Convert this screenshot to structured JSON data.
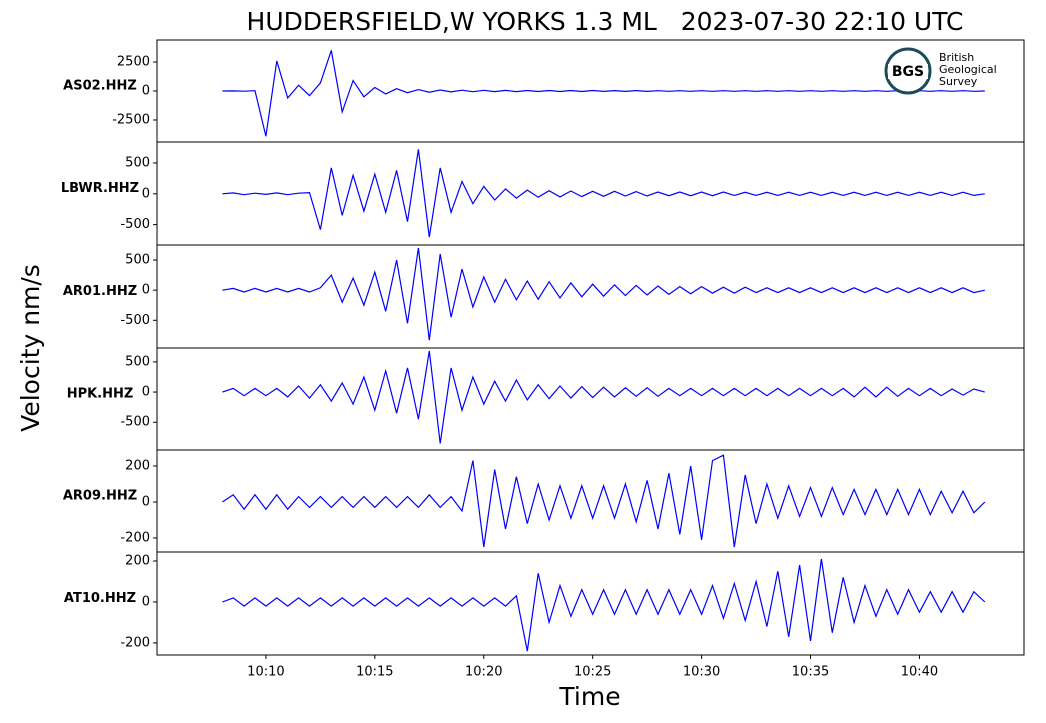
{
  "chart_data": {
    "type": "line",
    "title": "HUDDERSFIELD,W YORKS 1.3 ML   2023-07-30 22:10 UTC",
    "xlabel": "Time",
    "ylabel": "Velocity nm/s",
    "color": "#0000ff",
    "logo": {
      "initials": "BGS",
      "lines": [
        "British",
        "Geological",
        "Survey"
      ]
    },
    "xlim": [
      605,
      644.8
    ],
    "xticks": [
      {
        "value": 610,
        "label": "10:10"
      },
      {
        "value": 615,
        "label": "10:15"
      },
      {
        "value": 620,
        "label": "10:20"
      },
      {
        "value": 625,
        "label": "10:25"
      },
      {
        "value": 630,
        "label": "10:30"
      },
      {
        "value": 635,
        "label": "10:35"
      },
      {
        "value": 640,
        "label": "10:40"
      }
    ],
    "x": [
      608,
      608.5,
      609,
      609.5,
      610,
      610.5,
      611,
      611.5,
      612,
      612.5,
      613,
      613.5,
      614,
      614.5,
      615,
      615.5,
      616,
      616.5,
      617,
      617.5,
      618,
      618.5,
      619,
      619.5,
      620,
      620.5,
      621,
      621.5,
      622,
      622.5,
      623,
      623.5,
      624,
      624.5,
      625,
      625.5,
      626,
      626.5,
      627,
      627.5,
      628,
      628.5,
      629,
      629.5,
      630,
      630.5,
      631,
      631.5,
      632,
      632.5,
      633,
      633.5,
      634,
      634.5,
      635,
      635.5,
      636,
      636.5,
      637,
      637.5,
      638,
      638.5,
      639,
      639.5,
      640,
      640.5,
      641,
      641.5,
      642,
      642.5,
      643
    ],
    "series": [
      {
        "name": "AS02.HHZ",
        "ylim": [
          -4400,
          4400
        ],
        "yticks": [
          -2500,
          0,
          2500
        ],
        "values": [
          0,
          10,
          -20,
          30,
          -3900,
          2600,
          -600,
          500,
          -400,
          700,
          3500,
          -1800,
          900,
          -500,
          300,
          -250,
          200,
          -150,
          120,
          -100,
          90,
          -80,
          70,
          -60,
          60,
          -50,
          50,
          -50,
          45,
          -45,
          40,
          -40,
          40,
          -40,
          40,
          -35,
          35,
          -35,
          35,
          -35,
          30,
          -30,
          30,
          -30,
          30,
          -30,
          30,
          -30,
          30,
          -30,
          30,
          -30,
          30,
          -30,
          30,
          -30,
          30,
          -30,
          30,
          -30,
          30,
          -30,
          30,
          -30,
          30,
          -30,
          30,
          -30,
          30,
          -30,
          0
        ]
      },
      {
        "name": "LBWR.HHZ",
        "ylim": [
          -830,
          840
        ],
        "yticks": [
          -500,
          0,
          500
        ],
        "values": [
          0,
          15,
          -15,
          10,
          -10,
          15,
          -15,
          10,
          20,
          -580,
          420,
          -350,
          300,
          -280,
          320,
          -300,
          380,
          -450,
          720,
          -700,
          420,
          -300,
          200,
          -160,
          120,
          -100,
          80,
          -70,
          60,
          -55,
          50,
          -50,
          45,
          -45,
          40,
          -40,
          40,
          -35,
          35,
          -35,
          30,
          -30,
          30,
          -30,
          30,
          -30,
          30,
          -25,
          25,
          -25,
          25,
          -25,
          25,
          -25,
          25,
          -25,
          25,
          -25,
          25,
          -25,
          25,
          -25,
          25,
          -25,
          25,
          -25,
          25,
          -25,
          25,
          -25,
          0
        ]
      },
      {
        "name": "AR01.HHZ",
        "ylim": [
          -960,
          750
        ],
        "yticks": [
          -500,
          0,
          500
        ],
        "values": [
          0,
          30,
          -30,
          30,
          -30,
          30,
          -30,
          30,
          -30,
          40,
          250,
          -200,
          200,
          -250,
          300,
          -350,
          500,
          -550,
          700,
          -830,
          600,
          -450,
          350,
          -280,
          220,
          -200,
          180,
          -160,
          150,
          -150,
          140,
          -130,
          120,
          -110,
          100,
          -100,
          90,
          -90,
          80,
          -80,
          70,
          -70,
          60,
          -60,
          60,
          -50,
          50,
          -50,
          50,
          -40,
          40,
          -40,
          40,
          -40,
          40,
          -40,
          40,
          -40,
          40,
          -40,
          40,
          -40,
          40,
          -40,
          40,
          -40,
          40,
          -40,
          40,
          -40,
          0
        ]
      },
      {
        "name": "HPK.HHZ",
        "ylim": [
          -960,
          730
        ],
        "yticks": [
          -500,
          0,
          500
        ],
        "values": [
          0,
          60,
          -60,
          60,
          -60,
          60,
          -80,
          100,
          -100,
          120,
          -150,
          150,
          -200,
          250,
          -300,
          350,
          -350,
          400,
          -450,
          680,
          -850,
          400,
          -300,
          250,
          -200,
          180,
          -150,
          200,
          -130,
          120,
          -110,
          100,
          -100,
          90,
          -90,
          80,
          -80,
          70,
          -70,
          70,
          -70,
          60,
          -60,
          60,
          -60,
          60,
          -60,
          60,
          -60,
          60,
          -60,
          60,
          -60,
          60,
          -60,
          60,
          -60,
          60,
          -80,
          80,
          -80,
          80,
          -70,
          60,
          -60,
          60,
          -60,
          50,
          -50,
          50,
          0
        ]
      },
      {
        "name": "AR09.HHZ",
        "ylim": [
          -278,
          289
        ],
        "yticks": [
          -200,
          0,
          200
        ],
        "values": [
          0,
          40,
          -40,
          40,
          -40,
          40,
          -40,
          30,
          -30,
          30,
          -30,
          30,
          -30,
          30,
          -30,
          30,
          -30,
          30,
          -30,
          40,
          -30,
          30,
          -50,
          230,
          -250,
          180,
          -150,
          140,
          -120,
          100,
          -100,
          90,
          -90,
          90,
          -90,
          90,
          -90,
          100,
          -110,
          120,
          -150,
          160,
          -180,
          200,
          -210,
          230,
          260,
          -250,
          150,
          -120,
          100,
          -90,
          90,
          -80,
          80,
          -80,
          80,
          -70,
          70,
          -70,
          70,
          -70,
          70,
          -70,
          70,
          -70,
          60,
          -60,
          60,
          -60,
          0
        ]
      },
      {
        "name": "AT10.HHZ",
        "ylim": [
          -259,
          244
        ],
        "yticks": [
          -200,
          0,
          200
        ],
        "values": [
          0,
          20,
          -20,
          20,
          -20,
          20,
          -20,
          20,
          -20,
          20,
          -20,
          20,
          -20,
          20,
          -20,
          20,
          -20,
          20,
          -20,
          20,
          -20,
          20,
          -20,
          20,
          -20,
          20,
          -20,
          30,
          -240,
          140,
          -100,
          80,
          -70,
          60,
          -60,
          60,
          -60,
          60,
          -60,
          60,
          -60,
          60,
          -60,
          60,
          -60,
          80,
          -80,
          90,
          -90,
          100,
          -120,
          150,
          -170,
          180,
          -190,
          210,
          -150,
          120,
          -100,
          80,
          -70,
          60,
          -60,
          60,
          -50,
          50,
          -50,
          50,
          -50,
          50,
          0
        ]
      }
    ]
  }
}
